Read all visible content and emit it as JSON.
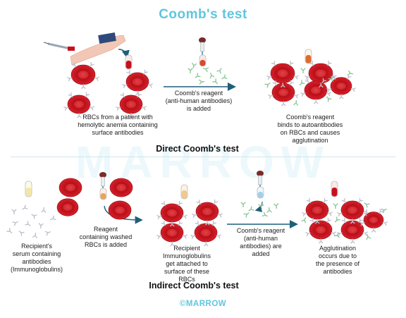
{
  "title": "Coomb's test",
  "watermark": "MARROW",
  "brand": "©MARROW",
  "direct": {
    "heading": "Direct Coomb's test",
    "caption_patient": [
      "RBCs from a patient with",
      "hemolytic anemia containing",
      "surface antibodies"
    ],
    "caption_reagent": [
      "Coomb's reagent",
      "(anti-human antibodies)",
      "is added"
    ],
    "caption_result": [
      "Coomb's reagent",
      "binds to autoantibodies",
      "on RBCs and causes",
      "agglutination"
    ]
  },
  "indirect": {
    "heading": "Indirect Coomb's test",
    "caption_serum": [
      "Recipient's",
      "serum containing",
      "antibodies",
      "(Immunoglobulins)"
    ],
    "caption_washed": [
      "Reagent",
      "containing washed",
      "RBCs is added"
    ],
    "caption_attached": [
      "Recipient",
      "Immunoglobulins",
      "get attached to",
      "surface of these",
      "RBCs"
    ],
    "caption_reagent": [
      "Coomb's reagent",
      "(anti-human",
      "antibodies) are",
      "added"
    ],
    "caption_result": [
      "Agglutination",
      "occurs due to",
      "the presence of",
      "antibodies"
    ]
  },
  "colors": {
    "accent": "#5fc6de",
    "rbc": "#c8101b",
    "rbc_center": "#e03a40",
    "antibody": "#c0c0ce",
    "reagent": "#8ec79a",
    "arrow": "#1f5f7a"
  },
  "icons": [
    "syringe-icon",
    "test-tube-icon",
    "dropper-icon",
    "rbc-icon",
    "antibody-icon"
  ]
}
